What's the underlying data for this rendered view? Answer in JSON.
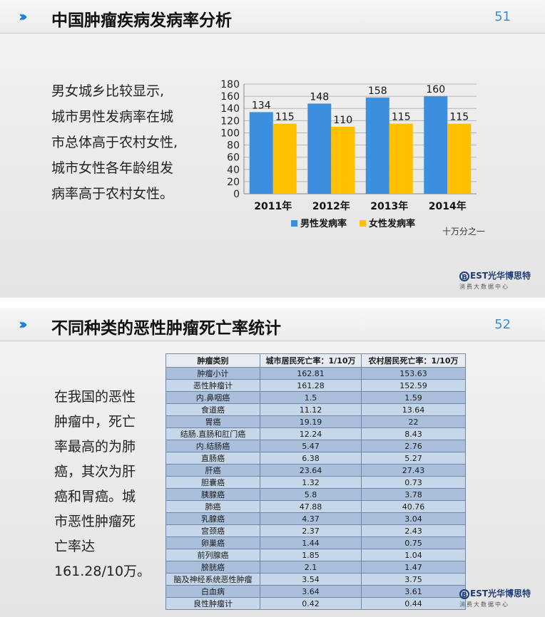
{
  "slide1": {
    "title": "中国肿瘤疾病发病率分析",
    "page": "51",
    "text_lines": [
      "男女城乡比较显示,",
      "城市男性发病率在城",
      "市总体高于农村女性,",
      "城市女性各年龄组发",
      "病率高于农村女性。"
    ],
    "unit_note": "十万分之一",
    "logo_main": "EST光华博思特",
    "logo_sub": "消费大数据中心"
  },
  "chart_data": {
    "type": "bar",
    "categories": [
      "2011年",
      "2012年",
      "2013年",
      "2014年"
    ],
    "series": [
      {
        "name": "男性发病率",
        "values": [
          134,
          148,
          158,
          160
        ],
        "color": "#3b8fde"
      },
      {
        "name": "女性发病率",
        "values": [
          115,
          110,
          115,
          115
        ],
        "color": "#ffc000"
      }
    ],
    "ylim": [
      0,
      180
    ],
    "yticks": [
      0,
      20,
      40,
      60,
      80,
      100,
      120,
      140,
      160,
      180
    ],
    "grid": true,
    "legend_position": "bottom"
  },
  "slide2": {
    "title": "不同种类的恶性肿瘤死亡率统计",
    "page": "52",
    "text_lines": [
      "在我国的恶性",
      "肿瘤中，死亡",
      "率最高的为肺",
      "癌，其次为肝",
      "癌和胃癌。城",
      "市恶性肿瘤死",
      "亡率达",
      "161.28/10万。"
    ],
    "table": {
      "headers": [
        "肿瘤类别",
        "城市居民死亡率：1/10万",
        "农村居民死亡率：1/10万"
      ],
      "rows": [
        [
          "肿瘤小计",
          "162.81",
          "153.63"
        ],
        [
          "恶性肿瘤计",
          "161.28",
          "152.59"
        ],
        [
          "内.鼻咽癌",
          "1.5",
          "1.59"
        ],
        [
          "食道癌",
          "11.12",
          "13.64"
        ],
        [
          "胃癌",
          "19.19",
          "22"
        ],
        [
          "结肠.直肠和肛门癌",
          "12.24",
          "8.43"
        ],
        [
          "内.结肠癌",
          "5.47",
          "2.76"
        ],
        [
          "直肠癌",
          "6.38",
          "5.27"
        ],
        [
          "肝癌",
          "23.64",
          "27.43"
        ],
        [
          "胆囊癌",
          "1.32",
          "0.73"
        ],
        [
          "胰腺癌",
          "5.8",
          "3.78"
        ],
        [
          "肺癌",
          "47.88",
          "40.76"
        ],
        [
          "乳腺癌",
          "4.37",
          "3.04"
        ],
        [
          "宫颈癌",
          "2.37",
          "2.43"
        ],
        [
          "卵巢癌",
          "1.44",
          "0.75"
        ],
        [
          "前列腺癌",
          "1.85",
          "1.04"
        ],
        [
          "膀胱癌",
          "2.1",
          "1.47"
        ],
        [
          "脑及神经系统恶性肿瘤",
          "3.54",
          "3.75"
        ],
        [
          "白血病",
          "3.64",
          "3.61"
        ],
        [
          "良性肿瘤计",
          "0.42",
          "0.44"
        ]
      ]
    },
    "logo_main": "EST光华博思特",
    "logo_sub": "消费大数据中心"
  }
}
